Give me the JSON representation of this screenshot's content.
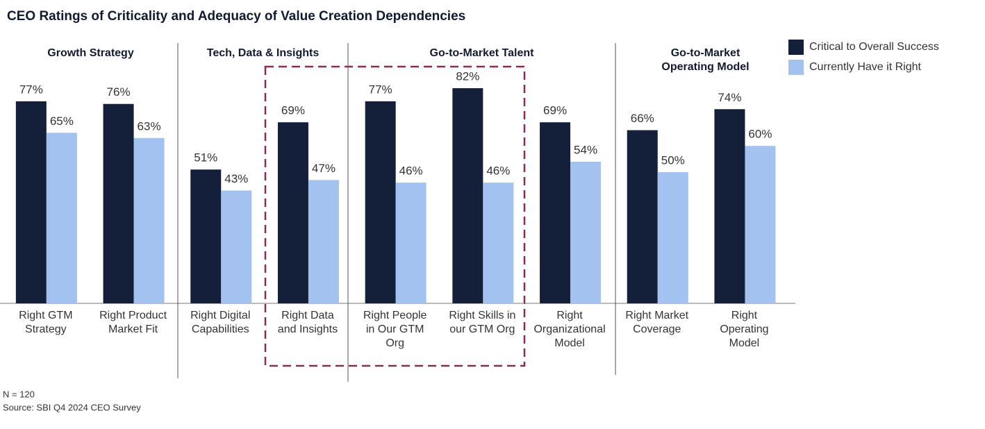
{
  "chart_data": {
    "type": "bar",
    "title": "CEO Ratings of Criticality and Adequacy of Value Creation Dependencies",
    "groups": [
      [
        "Growth Strategy"
      ],
      [
        "Tech, Data & Insights"
      ],
      [
        "Go-to-Market Talent"
      ],
      [
        "Go-to-Market",
        "Operating Model"
      ]
    ],
    "categories": [
      [
        "Right GTM",
        "Strategy"
      ],
      [
        "Right Product",
        "Market Fit"
      ],
      [
        "Right Digital",
        "Capabilities"
      ],
      [
        "Right Data",
        "and Insights"
      ],
      [
        "Right People",
        "in Our GTM",
        "Org"
      ],
      [
        "Right Skills in",
        "our GTM Org"
      ],
      [
        "Right",
        "Organizational",
        "Model"
      ],
      [
        "Right Market",
        "Coverage"
      ],
      [
        "Right",
        "Operating",
        "Model"
      ]
    ],
    "series": [
      {
        "name": "Critical to Overall Success",
        "color": "#14203a",
        "values": [
          77,
          76,
          51,
          69,
          77,
          82,
          69,
          66,
          74
        ],
        "value_labels": [
          "77%",
          "76%",
          "51%",
          "69%",
          "77%",
          "82%",
          "69%",
          "66%",
          "74%"
        ]
      },
      {
        "name": "Currently Have it Right",
        "color": "#a3c2f0",
        "values": [
          65,
          63,
          43,
          47,
          46,
          46,
          54,
          50,
          60
        ],
        "value_labels": [
          "65%",
          "63%",
          "43%",
          "47%",
          "46%",
          "46%",
          "54%",
          "50%",
          "60%"
        ]
      }
    ],
    "notes": [
      "N = 120",
      "Source: SBI Q4 2024 CEO Survey"
    ]
  }
}
